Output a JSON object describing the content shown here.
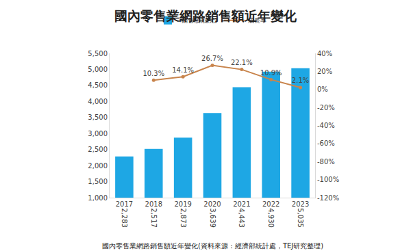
{
  "chart_data": {
    "type": "bar",
    "title": "國內零售業網路銷售額近年變化",
    "caption": "國內零售業網路銷售額近年變化(資料來源：經濟部統計處，TEJ研究整理)",
    "categories": [
      "2017",
      "2018",
      "2019",
      "2020",
      "2021",
      "2022",
      "2023"
    ],
    "series": [
      {
        "name": "銷售額(億元)",
        "type": "bar",
        "color": "#1ea7e4",
        "values": [
          2283,
          2517,
          2873,
          3639,
          4443,
          4930,
          5035
        ],
        "value_labels": [
          "2,283",
          "2,517",
          "2,873",
          "3,639",
          "4,443",
          "4,930",
          "5,035"
        ]
      },
      {
        "name": "成長率",
        "type": "line",
        "axis": "y2",
        "color": "#c8844c",
        "marker": "circle",
        "values": [
          null,
          10.3,
          14.1,
          26.7,
          22.1,
          10.9,
          2.1
        ],
        "value_labels": [
          null,
          "10.3%",
          "14.1%",
          "26.7%",
          "22.1%",
          "10.9%",
          "2.1%"
        ]
      }
    ],
    "ylim": [
      1000,
      5500
    ],
    "yticks": [
      {
        "value": 1000,
        "label": "1,000"
      },
      {
        "value": 1500,
        "label": "1,500"
      },
      {
        "value": 2000,
        "label": "2,000"
      },
      {
        "value": 2500,
        "label": "2,500"
      },
      {
        "value": 3000,
        "label": "3,000"
      },
      {
        "value": 3500,
        "label": "3,500"
      },
      {
        "value": 4000,
        "label": "4,000"
      },
      {
        "value": 4500,
        "label": "4,500"
      },
      {
        "value": 5000,
        "label": "5,000"
      },
      {
        "value": 5500,
        "label": "5,500"
      }
    ],
    "y2lim": [
      -120,
      40
    ],
    "y2ticks": [
      {
        "value": -120,
        "label": "-120%"
      },
      {
        "value": -100,
        "label": "-100%"
      },
      {
        "value": -80,
        "label": "-80%"
      },
      {
        "value": -60,
        "label": "-60%"
      },
      {
        "value": -40,
        "label": "-40%"
      },
      {
        "value": -20,
        "label": "-20%"
      },
      {
        "value": 0,
        "label": "0%"
      },
      {
        "value": 20,
        "label": "20%"
      },
      {
        "value": 40,
        "label": "40%"
      }
    ],
    "data_labels": true,
    "legend": "top",
    "grid": false
  }
}
